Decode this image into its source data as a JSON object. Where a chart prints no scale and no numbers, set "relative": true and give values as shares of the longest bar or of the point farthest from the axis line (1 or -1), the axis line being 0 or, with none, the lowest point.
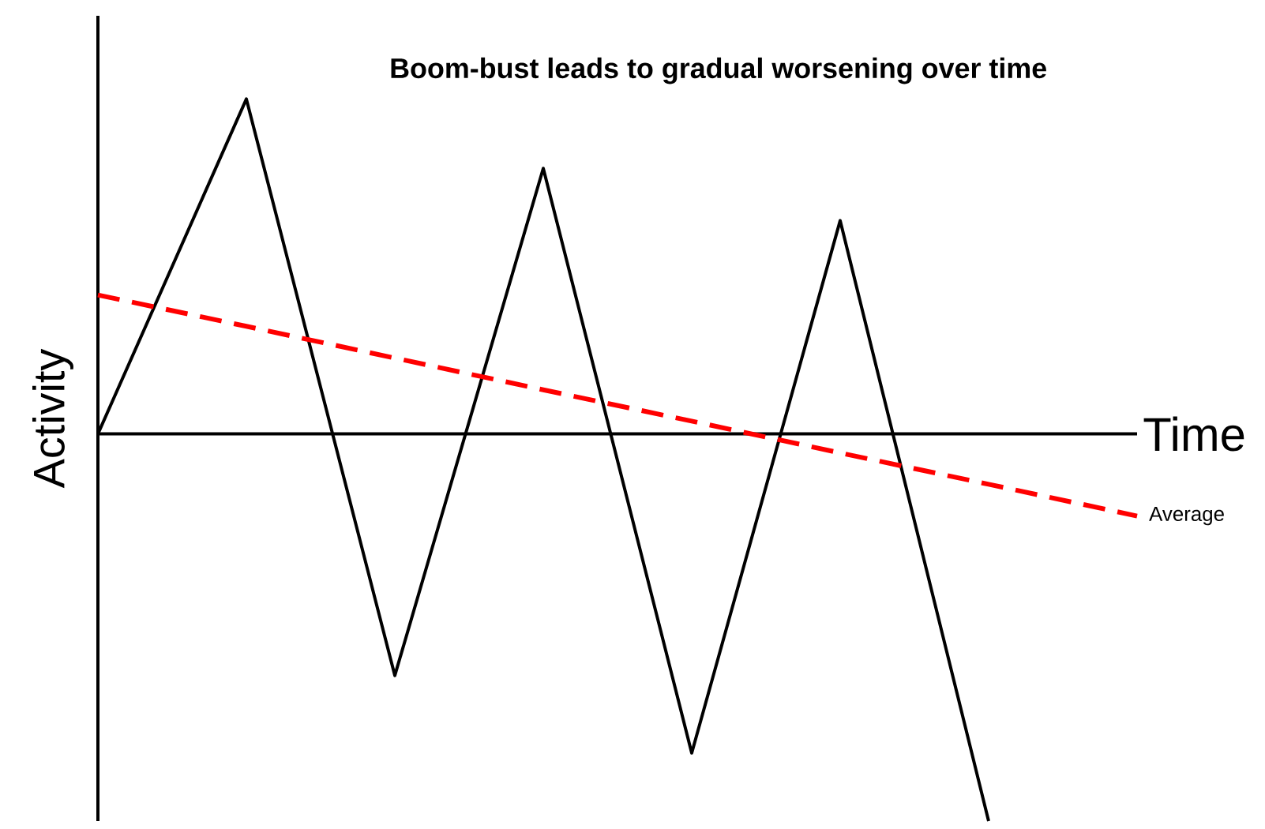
{
  "chart_data": {
    "type": "line",
    "title": "Boom-bust leads to gradual worsening over time",
    "xlabel": "Time",
    "ylabel": "Activity",
    "relative": true,
    "marker": "none",
    "categories": [
      null,
      null,
      null,
      null,
      null,
      null,
      null,
      null
    ],
    "series": [
      {
        "color": "#000000",
        "line_style": "solid",
        "values": [
          0,
          0.865,
          -0.624,
          0.686,
          -0.824,
          0.551,
          -1,
          null
        ]
      },
      {
        "name": "Average",
        "color": "#ff0000",
        "line_style": "dashed",
        "values": [
          0.359,
          0.278,
          0.196,
          0.114,
          0.033,
          -0.049,
          -0.13,
          -0.212
        ]
      }
    ]
  }
}
